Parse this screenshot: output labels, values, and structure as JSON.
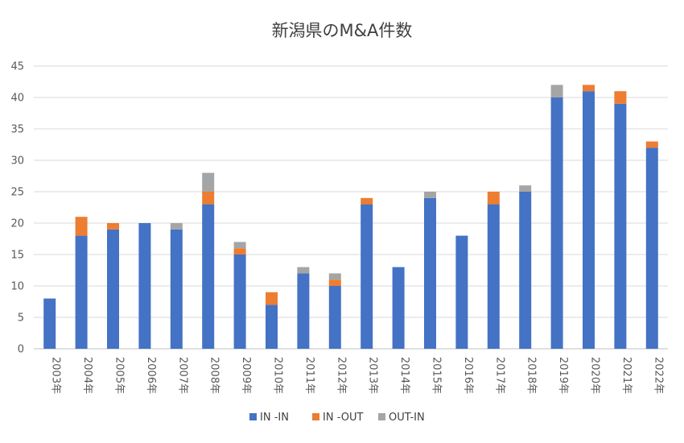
{
  "chart_data": {
    "type": "bar",
    "stacked": true,
    "title": "新潟県のM&A件数",
    "xlabel": "",
    "ylabel": "",
    "ylim": [
      0,
      45
    ],
    "yticks": [
      0,
      5,
      10,
      15,
      20,
      25,
      30,
      35,
      40,
      45
    ],
    "grid": true,
    "legend_position": "bottom",
    "categories": [
      "2003年",
      "2004年",
      "2005年",
      "2006年",
      "2007年",
      "2008年",
      "2009年",
      "2010年",
      "2011年",
      "2012年",
      "2013年",
      "2014年",
      "2015年",
      "2016年",
      "2017年",
      "2018年",
      "2019年",
      "2020年",
      "2021年",
      "2022年"
    ],
    "series": [
      {
        "name": "IN -IN",
        "color": "#4472c4",
        "values": [
          8,
          18,
          19,
          20,
          19,
          23,
          15,
          7,
          12,
          10,
          23,
          13,
          24,
          18,
          23,
          25,
          40,
          41,
          39,
          32
        ]
      },
      {
        "name": "IN -OUT",
        "color": "#ed7d31",
        "values": [
          0,
          3,
          1,
          0,
          0,
          2,
          1,
          2,
          0,
          1,
          1,
          0,
          0,
          0,
          2,
          0,
          0,
          1,
          2,
          1
        ]
      },
      {
        "name": "OUT-IN",
        "color": "#a5a5a5",
        "values": [
          0,
          0,
          0,
          0,
          1,
          3,
          1,
          0,
          1,
          1,
          0,
          0,
          1,
          0,
          0,
          1,
          2,
          0,
          0,
          0
        ]
      }
    ]
  }
}
